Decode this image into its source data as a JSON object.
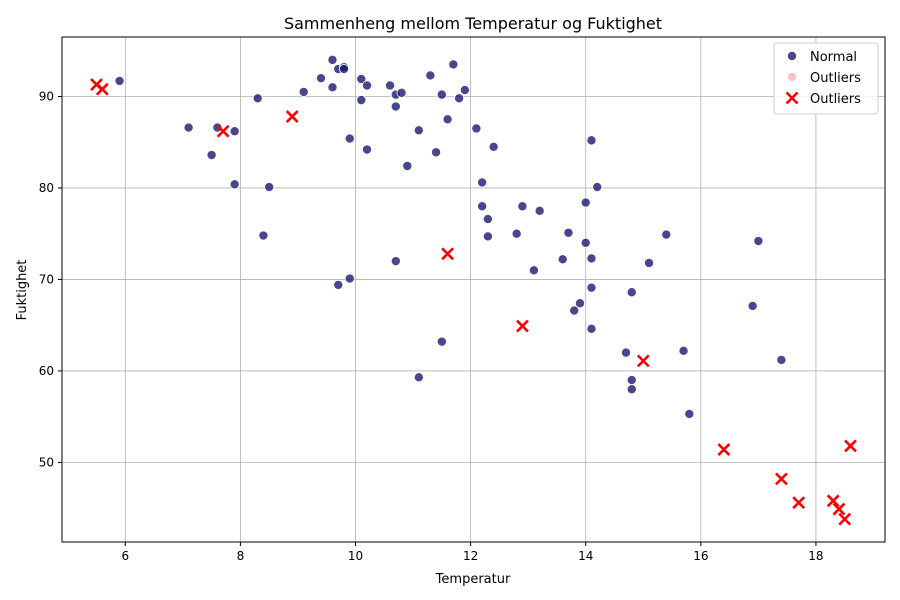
{
  "chart_data": {
    "type": "scatter",
    "title": "Sammenheng mellom Temperatur og Fuktighet",
    "xlabel": "Temperatur",
    "ylabel": "Fuktighet",
    "xlim": [
      4.9,
      19.2
    ],
    "ylim": [
      41.3,
      96.5
    ],
    "xticks": [
      6,
      8,
      10,
      12,
      14,
      16,
      18
    ],
    "yticks": [
      50,
      60,
      70,
      80,
      90
    ],
    "grid": true,
    "legend_position": "top-right",
    "series": [
      {
        "name": "Normal",
        "marker": "circle",
        "color": "#191970",
        "points": [
          [
            5.9,
            91.7
          ],
          [
            7.1,
            86.6
          ],
          [
            7.5,
            83.6
          ],
          [
            7.6,
            86.6
          ],
          [
            7.9,
            86.2
          ],
          [
            7.9,
            80.4
          ],
          [
            8.3,
            89.8
          ],
          [
            8.4,
            74.8
          ],
          [
            8.5,
            80.1
          ],
          [
            9.1,
            90.5
          ],
          [
            9.4,
            92.0
          ],
          [
            9.6,
            94.0
          ],
          [
            9.6,
            91.0
          ],
          [
            9.7,
            93.0
          ],
          [
            9.7,
            69.4
          ],
          [
            9.8,
            93.2
          ],
          [
            9.8,
            93.0
          ],
          [
            9.9,
            85.4
          ],
          [
            9.9,
            70.1
          ],
          [
            10.1,
            91.9
          ],
          [
            10.1,
            89.6
          ],
          [
            10.2,
            91.2
          ],
          [
            10.2,
            84.2
          ],
          [
            10.6,
            91.2
          ],
          [
            10.7,
            90.2
          ],
          [
            10.7,
            88.9
          ],
          [
            10.7,
            72.0
          ],
          [
            10.8,
            90.4
          ],
          [
            10.9,
            82.4
          ],
          [
            11.1,
            86.3
          ],
          [
            11.1,
            59.3
          ],
          [
            11.3,
            92.3
          ],
          [
            11.4,
            83.9
          ],
          [
            11.5,
            90.2
          ],
          [
            11.5,
            63.2
          ],
          [
            11.6,
            87.5
          ],
          [
            11.7,
            93.5
          ],
          [
            11.8,
            89.8
          ],
          [
            11.9,
            90.7
          ],
          [
            12.1,
            86.5
          ],
          [
            12.2,
            80.6
          ],
          [
            12.2,
            78.0
          ],
          [
            12.3,
            76.6
          ],
          [
            12.3,
            74.7
          ],
          [
            12.4,
            84.5
          ],
          [
            12.8,
            75.0
          ],
          [
            12.9,
            78.0
          ],
          [
            13.1,
            71.0
          ],
          [
            13.2,
            77.5
          ],
          [
            13.6,
            72.2
          ],
          [
            13.7,
            75.1
          ],
          [
            13.8,
            66.6
          ],
          [
            13.9,
            67.4
          ],
          [
            14.0,
            78.4
          ],
          [
            14.0,
            74.0
          ],
          [
            14.1,
            85.2
          ],
          [
            14.1,
            72.3
          ],
          [
            14.1,
            69.1
          ],
          [
            14.1,
            64.6
          ],
          [
            14.2,
            80.1
          ],
          [
            14.7,
            62.0
          ],
          [
            14.8,
            68.6
          ],
          [
            14.8,
            59.0
          ],
          [
            14.8,
            58.0
          ],
          [
            15.1,
            71.8
          ],
          [
            15.4,
            74.9
          ],
          [
            15.7,
            62.2
          ],
          [
            15.8,
            55.3
          ],
          [
            16.9,
            67.1
          ],
          [
            17.0,
            74.2
          ],
          [
            17.4,
            61.2
          ]
        ]
      },
      {
        "name": "Outliers",
        "marker": "circle",
        "color": "#f4b6b6",
        "points": []
      },
      {
        "name": "Outliers",
        "marker": "x",
        "color": "#ff0000",
        "points": [
          [
            5.5,
            91.3
          ],
          [
            5.6,
            90.8
          ],
          [
            7.7,
            86.2
          ],
          [
            8.9,
            87.8
          ],
          [
            11.6,
            72.8
          ],
          [
            12.9,
            64.9
          ],
          [
            15.0,
            61.1
          ],
          [
            16.4,
            51.4
          ],
          [
            17.4,
            48.2
          ],
          [
            17.7,
            45.6
          ],
          [
            18.3,
            45.8
          ],
          [
            18.4,
            44.9
          ],
          [
            18.5,
            43.8
          ],
          [
            18.6,
            51.8
          ]
        ]
      }
    ]
  }
}
